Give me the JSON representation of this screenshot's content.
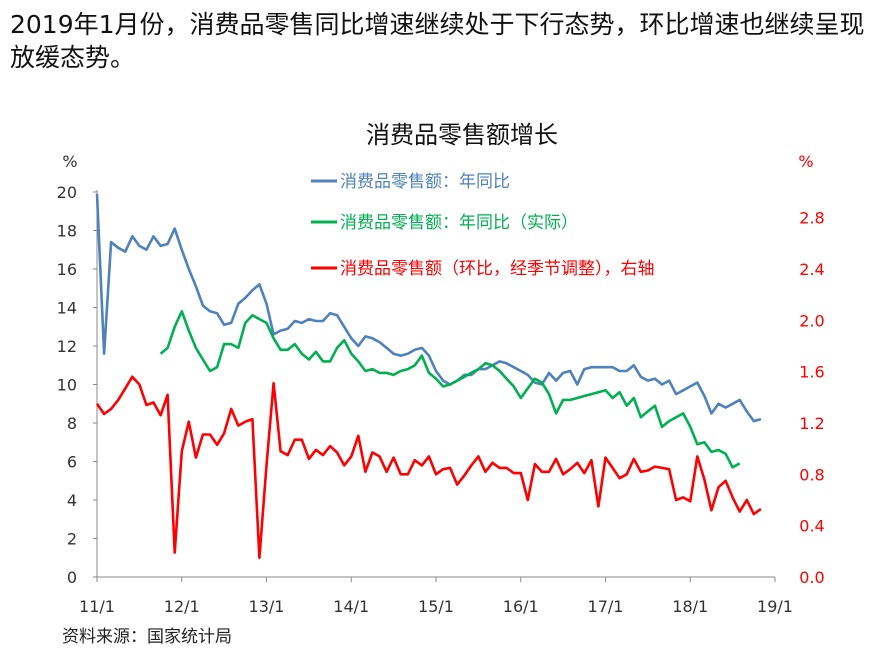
{
  "headline": "2019年1月份，消费品零售同比增速继续处于下行态势，环比增速也继续呈现放缓态势。",
  "source": "资料来源：国家统计局",
  "colors": {
    "yoy": "#4f81bd",
    "real": "#00b050",
    "mom": "#ff0000",
    "axis": "#888888"
  },
  "chart_data": {
    "type": "line",
    "title": "消费品零售额增长",
    "left_axis": {
      "unit": "%",
      "ylim": [
        0,
        20
      ],
      "ticks": [
        "0",
        "2",
        "4",
        "6",
        "8",
        "10",
        "12",
        "14",
        "16",
        "18",
        "20"
      ]
    },
    "right_axis": {
      "unit": "%",
      "ylim": [
        0,
        3.0
      ],
      "ticks": [
        "0.0",
        "0.4",
        "0.8",
        "1.2",
        "1.6",
        "2.0",
        "2.4",
        "2.8"
      ]
    },
    "x_ticks": [
      "11/1",
      "12/1",
      "13/1",
      "14/1",
      "15/1",
      "16/1",
      "17/1",
      "18/1",
      "19/1"
    ],
    "x_tick_months": [
      0,
      12,
      24,
      36,
      48,
      60,
      72,
      84,
      96
    ],
    "legend_position": "top-center",
    "grid": false,
    "series": [
      {
        "name": "消费品零售额：年同比",
        "axis": "left",
        "color": "#4f81bd",
        "start_month": 0,
        "values": [
          19.9,
          11.6,
          17.4,
          17.1,
          16.9,
          17.7,
          17.2,
          17.0,
          17.7,
          17.2,
          17.3,
          18.1,
          17.0,
          16.0,
          15.1,
          14.1,
          13.8,
          13.7,
          13.1,
          13.2,
          14.2,
          14.5,
          14.9,
          15.2,
          14.2,
          12.6,
          12.8,
          12.9,
          13.3,
          13.2,
          13.4,
          13.3,
          13.3,
          13.7,
          13.6,
          13.0,
          12.4,
          12.0,
          12.5,
          12.4,
          12.2,
          11.9,
          11.6,
          11.5,
          11.6,
          11.8,
          11.9,
          11.5,
          10.7,
          10.2,
          10.0,
          10.2,
          10.5,
          10.5,
          10.8,
          10.8,
          11.0,
          11.2,
          11.1,
          10.9,
          10.7,
          10.5,
          10.1,
          10.0,
          10.6,
          10.2,
          10.6,
          10.7,
          10.0,
          10.8,
          10.9,
          10.9,
          10.9,
          10.9,
          10.7,
          10.7,
          11.0,
          10.4,
          10.2,
          10.3,
          10.0,
          10.2,
          9.5,
          9.7,
          9.9,
          10.1,
          9.4,
          8.5,
          9.0,
          8.8,
          9.0,
          9.2,
          8.6,
          8.1,
          8.2
        ]
      },
      {
        "name": "消费品零售额：年同比（实际）",
        "axis": "left",
        "color": "#00b050",
        "start_month": 9,
        "values": [
          11.6,
          11.9,
          13.0,
          13.8,
          12.8,
          11.9,
          11.3,
          10.7,
          10.9,
          12.1,
          12.1,
          11.9,
          13.2,
          13.6,
          13.4,
          13.2,
          12.4,
          11.8,
          11.8,
          12.1,
          11.6,
          11.3,
          11.7,
          11.2,
          11.2,
          11.9,
          12.3,
          11.6,
          11.2,
          10.7,
          10.8,
          10.6,
          10.6,
          10.5,
          10.7,
          10.8,
          11.0,
          11.5,
          10.6,
          10.3,
          9.9,
          10.0,
          10.2,
          10.4,
          10.6,
          10.8,
          11.1,
          11.0,
          10.7,
          10.3,
          9.9,
          9.3,
          9.8,
          10.3,
          10.1,
          9.5,
          8.5,
          9.2,
          9.2,
          9.3,
          9.4,
          9.5,
          9.6,
          9.7,
          9.3,
          9.6,
          8.9,
          9.3,
          8.3,
          8.6,
          8.9,
          7.8,
          8.1,
          8.3,
          8.5,
          7.8,
          6.9,
          7.0,
          6.5,
          6.6,
          6.4,
          5.7,
          5.9
        ]
      },
      {
        "name": "消费品零售额（环比，经季节调整），右轴",
        "axis": "right",
        "color": "#ff0000",
        "start_month": 0,
        "values": [
          1.35,
          1.27,
          1.31,
          1.38,
          1.47,
          1.56,
          1.5,
          1.34,
          1.36,
          1.26,
          1.42,
          0.19,
          0.98,
          1.21,
          0.93,
          1.11,
          1.11,
          1.03,
          1.12,
          1.31,
          1.18,
          1.21,
          1.23,
          0.15,
          0.87,
          1.51,
          0.98,
          0.95,
          1.07,
          1.07,
          0.92,
          0.99,
          0.95,
          1.02,
          0.97,
          0.87,
          0.94,
          1.1,
          0.82,
          0.97,
          0.94,
          0.82,
          0.93,
          0.8,
          0.8,
          0.91,
          0.87,
          0.94,
          0.8,
          0.84,
          0.85,
          0.72,
          0.79,
          0.87,
          0.94,
          0.82,
          0.89,
          0.85,
          0.85,
          0.81,
          0.81,
          0.6,
          0.88,
          0.82,
          0.82,
          0.92,
          0.8,
          0.84,
          0.89,
          0.81,
          0.91,
          0.55,
          0.93,
          0.85,
          0.77,
          0.8,
          0.92,
          0.82,
          0.83,
          0.86,
          0.85,
          0.84,
          0.6,
          0.62,
          0.59,
          0.94,
          0.76,
          0.52,
          0.7,
          0.75,
          0.62,
          0.51,
          0.6,
          0.49,
          0.53
        ]
      }
    ]
  }
}
